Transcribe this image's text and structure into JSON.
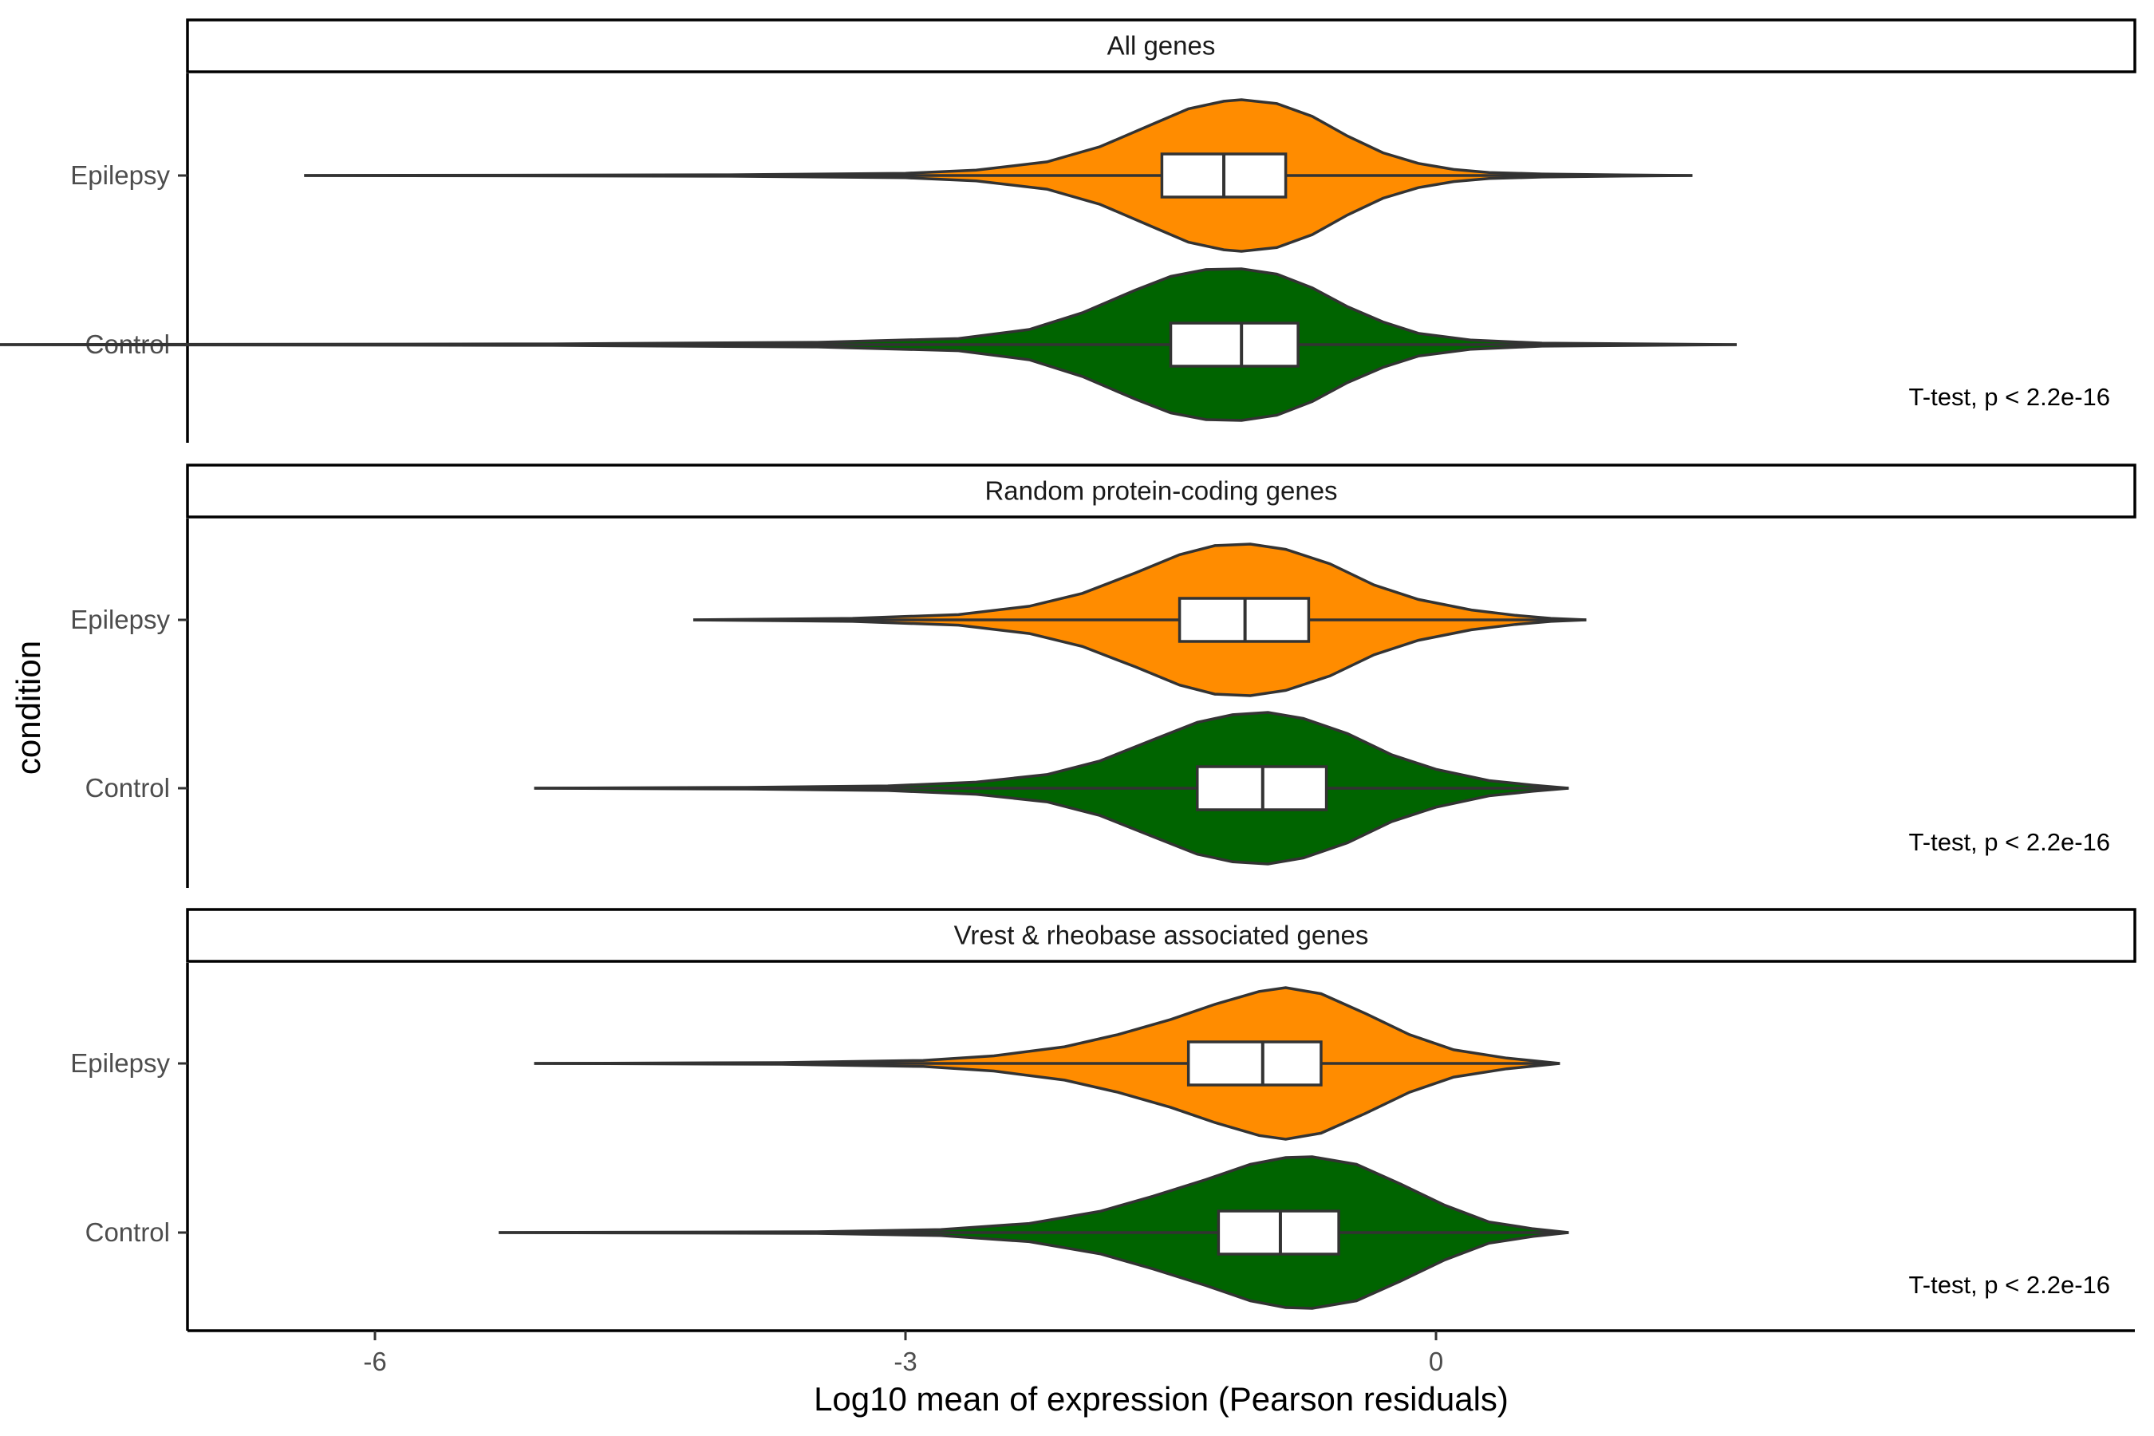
{
  "chart_data": {
    "type": "violin",
    "xlabel": "Log10 mean of expression (Pearson residuals)",
    "ylabel": "condition",
    "xlim": [
      -9.8,
      2.2
    ],
    "xticks": [
      -6,
      -3,
      0
    ],
    "categories": [
      "Epilepsy",
      "Control"
    ],
    "colors": {
      "Epilepsy": "#FF8C00",
      "Control": "#006400"
    },
    "facets": [
      {
        "title": "All genes",
        "annotation": "T-test, p < 2.2e-16",
        "series": [
          {
            "condition": "Epilepsy",
            "min": -6.4,
            "max": 1.45,
            "q1": -1.55,
            "median": -1.2,
            "q3": -0.85,
            "density": [
              [
                -6.4,
                0.0
              ],
              [
                -4.0,
                0.01
              ],
              [
                -3.0,
                0.03
              ],
              [
                -2.6,
                0.07
              ],
              [
                -2.2,
                0.18
              ],
              [
                -1.9,
                0.38
              ],
              [
                -1.6,
                0.68
              ],
              [
                -1.4,
                0.88
              ],
              [
                -1.2,
                0.98
              ],
              [
                -1.1,
                1.0
              ],
              [
                -0.9,
                0.95
              ],
              [
                -0.7,
                0.78
              ],
              [
                -0.5,
                0.52
              ],
              [
                -0.3,
                0.3
              ],
              [
                -0.1,
                0.16
              ],
              [
                0.1,
                0.08
              ],
              [
                0.3,
                0.04
              ],
              [
                0.6,
                0.02
              ],
              [
                1.0,
                0.01
              ],
              [
                1.45,
                0.0
              ]
            ]
          },
          {
            "condition": "Control",
            "min": -8.3,
            "max": 1.7,
            "q1": -1.5,
            "median": -1.1,
            "q3": -0.78,
            "density": [
              [
                -8.3,
                0.0
              ],
              [
                -5.0,
                0.01
              ],
              [
                -3.5,
                0.03
              ],
              [
                -2.7,
                0.08
              ],
              [
                -2.3,
                0.2
              ],
              [
                -2.0,
                0.42
              ],
              [
                -1.7,
                0.72
              ],
              [
                -1.5,
                0.9
              ],
              [
                -1.3,
                0.99
              ],
              [
                -1.1,
                1.0
              ],
              [
                -0.9,
                0.93
              ],
              [
                -0.7,
                0.75
              ],
              [
                -0.5,
                0.5
              ],
              [
                -0.3,
                0.3
              ],
              [
                -0.1,
                0.15
              ],
              [
                0.2,
                0.06
              ],
              [
                0.6,
                0.02
              ],
              [
                1.2,
                0.01
              ],
              [
                1.7,
                0.0
              ]
            ]
          }
        ]
      },
      {
        "title": "Random protein-coding genes",
        "annotation": "T-test, p < 2.2e-16",
        "series": [
          {
            "condition": "Epilepsy",
            "min": -4.2,
            "max": 0.85,
            "q1": -1.45,
            "median": -1.08,
            "q3": -0.72,
            "density": [
              [
                -4.2,
                0.0
              ],
              [
                -3.3,
                0.02
              ],
              [
                -2.7,
                0.07
              ],
              [
                -2.3,
                0.18
              ],
              [
                -2.0,
                0.35
              ],
              [
                -1.7,
                0.62
              ],
              [
                -1.45,
                0.86
              ],
              [
                -1.25,
                0.98
              ],
              [
                -1.05,
                1.0
              ],
              [
                -0.85,
                0.93
              ],
              [
                -0.6,
                0.74
              ],
              [
                -0.35,
                0.46
              ],
              [
                -0.1,
                0.27
              ],
              [
                0.2,
                0.13
              ],
              [
                0.45,
                0.06
              ],
              [
                0.65,
                0.02
              ],
              [
                0.85,
                0.0
              ]
            ]
          },
          {
            "condition": "Control",
            "min": -5.1,
            "max": 0.75,
            "q1": -1.35,
            "median": -0.98,
            "q3": -0.62,
            "density": [
              [
                -5.1,
                0.0
              ],
              [
                -3.9,
                0.01
              ],
              [
                -3.1,
                0.03
              ],
              [
                -2.6,
                0.08
              ],
              [
                -2.2,
                0.18
              ],
              [
                -1.9,
                0.36
              ],
              [
                -1.6,
                0.64
              ],
              [
                -1.35,
                0.87
              ],
              [
                -1.15,
                0.97
              ],
              [
                -0.95,
                1.0
              ],
              [
                -0.75,
                0.92
              ],
              [
                -0.5,
                0.72
              ],
              [
                -0.25,
                0.44
              ],
              [
                0.0,
                0.25
              ],
              [
                0.3,
                0.1
              ],
              [
                0.55,
                0.04
              ],
              [
                0.75,
                0.0
              ]
            ]
          }
        ]
      },
      {
        "title": "Vrest & rheobase associated genes",
        "annotation": "T-test, p < 2.2e-16",
        "series": [
          {
            "condition": "Epilepsy",
            "min": -5.1,
            "max": 0.7,
            "q1": -1.4,
            "median": -0.98,
            "q3": -0.65,
            "density": [
              [
                -5.1,
                0.0
              ],
              [
                -3.7,
                0.01
              ],
              [
                -2.9,
                0.04
              ],
              [
                -2.5,
                0.1
              ],
              [
                -2.1,
                0.22
              ],
              [
                -1.8,
                0.38
              ],
              [
                -1.5,
                0.58
              ],
              [
                -1.25,
                0.78
              ],
              [
                -1.0,
                0.95
              ],
              [
                -0.85,
                1.0
              ],
              [
                -0.65,
                0.92
              ],
              [
                -0.4,
                0.66
              ],
              [
                -0.15,
                0.38
              ],
              [
                0.1,
                0.18
              ],
              [
                0.4,
                0.07
              ],
              [
                0.7,
                0.0
              ]
            ]
          },
          {
            "condition": "Control",
            "min": -5.3,
            "max": 0.75,
            "q1": -1.23,
            "median": -0.88,
            "q3": -0.55,
            "density": [
              [
                -5.3,
                0.0
              ],
              [
                -3.5,
                0.01
              ],
              [
                -2.8,
                0.04
              ],
              [
                -2.3,
                0.12
              ],
              [
                -1.9,
                0.28
              ],
              [
                -1.6,
                0.48
              ],
              [
                -1.3,
                0.7
              ],
              [
                -1.05,
                0.9
              ],
              [
                -0.85,
                0.99
              ],
              [
                -0.7,
                1.0
              ],
              [
                -0.45,
                0.9
              ],
              [
                -0.2,
                0.64
              ],
              [
                0.05,
                0.36
              ],
              [
                0.3,
                0.14
              ],
              [
                0.55,
                0.05
              ],
              [
                0.75,
                0.0
              ]
            ]
          }
        ]
      }
    ]
  }
}
